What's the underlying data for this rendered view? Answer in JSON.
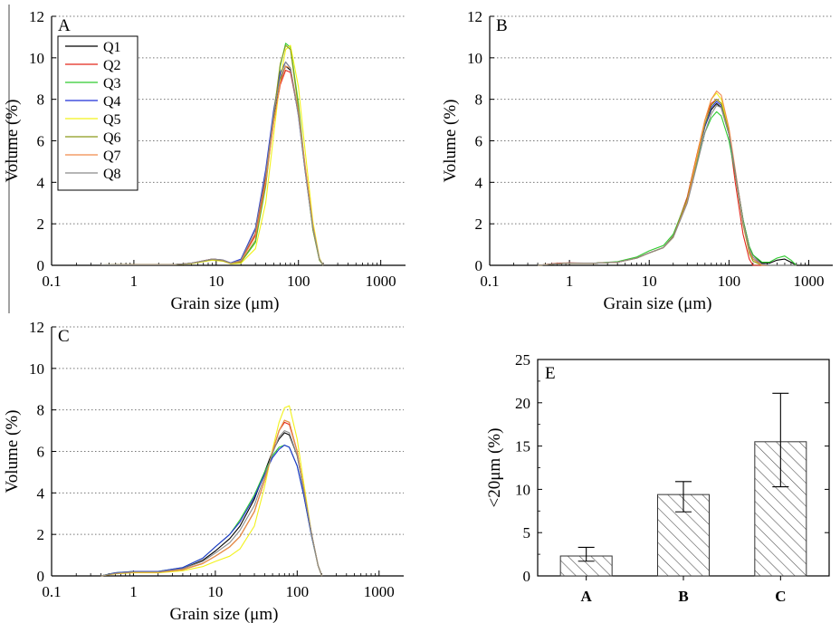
{
  "colors": {
    "Q1": "#000000",
    "Q2": "#e3261b",
    "Q3": "#2ecb2e",
    "Q4": "#1f2fd6",
    "Q5": "#f2f21a",
    "Q6": "#8a9a1a",
    "Q7": "#f08a4b",
    "Q8": "#8a8a8a",
    "bar_fill": "#ffffff",
    "bar_hatch": "#555555",
    "grid": "#777777"
  },
  "chart_data": [
    {
      "panel": "A",
      "type": "line",
      "label": "A",
      "xlabel": "Grain size (μm)",
      "ylabel": "Volume (%)",
      "xscale": "log",
      "xlim": [
        0.1,
        2000
      ],
      "ylim": [
        0,
        12
      ],
      "xticks": [
        "0.1",
        "1",
        "10",
        "100",
        "1000"
      ],
      "yticks": [
        "0",
        "2",
        "4",
        "6",
        "8",
        "10",
        "12"
      ],
      "grid": "horizontal dotted",
      "legend": {
        "position": "top-left",
        "entries": [
          "Q1",
          "Q2",
          "Q3",
          "Q4",
          "Q5",
          "Q6",
          "Q7",
          "Q8"
        ]
      },
      "x": [
        0.4,
        1,
        3,
        5,
        7,
        9,
        12,
        15,
        20,
        30,
        40,
        50,
        60,
        70,
        80,
        100,
        120,
        150,
        180,
        200
      ],
      "series": [
        {
          "name": "Q1",
          "values": [
            0.02,
            0.03,
            0.03,
            0.1,
            0.22,
            0.3,
            0.25,
            0.1,
            0.2,
            1.5,
            4.2,
            7.0,
            8.9,
            9.6,
            9.4,
            7.3,
            4.8,
            1.9,
            0.3,
            0
          ]
        },
        {
          "name": "Q2",
          "values": [
            0.02,
            0.03,
            0.03,
            0.1,
            0.22,
            0.3,
            0.25,
            0.1,
            0.2,
            1.5,
            4.1,
            6.9,
            8.7,
            9.4,
            9.3,
            7.3,
            4.8,
            1.9,
            0.3,
            0
          ]
        },
        {
          "name": "Q3",
          "values": [
            0.02,
            0.03,
            0.03,
            0.1,
            0.2,
            0.28,
            0.22,
            0.09,
            0.15,
            1.1,
            3.8,
            7.2,
            9.6,
            10.7,
            10.5,
            7.8,
            4.8,
            1.7,
            0.25,
            0
          ]
        },
        {
          "name": "Q4",
          "values": [
            0.02,
            0.03,
            0.03,
            0.1,
            0.22,
            0.3,
            0.26,
            0.12,
            0.3,
            1.8,
            4.6,
            7.5,
            9.3,
            9.8,
            9.5,
            7.2,
            4.6,
            1.8,
            0.3,
            0
          ]
        },
        {
          "name": "Q5",
          "values": [
            0.02,
            0.03,
            0.03,
            0.08,
            0.18,
            0.25,
            0.2,
            0.07,
            0.1,
            0.8,
            3.0,
            6.3,
            9.0,
            10.4,
            10.6,
            8.6,
            5.6,
            2.1,
            0.35,
            0
          ]
        },
        {
          "name": "Q6",
          "values": [
            0.02,
            0.03,
            0.03,
            0.1,
            0.2,
            0.28,
            0.22,
            0.09,
            0.15,
            1.2,
            3.9,
            7.3,
            9.7,
            10.6,
            10.4,
            7.6,
            4.7,
            1.7,
            0.25,
            0
          ]
        },
        {
          "name": "Q7",
          "values": [
            0.02,
            0.03,
            0.03,
            0.1,
            0.22,
            0.3,
            0.25,
            0.1,
            0.2,
            1.4,
            4.0,
            6.9,
            8.8,
            9.6,
            9.5,
            7.4,
            4.9,
            1.9,
            0.3,
            0
          ]
        },
        {
          "name": "Q8",
          "values": [
            0.02,
            0.03,
            0.03,
            0.1,
            0.22,
            0.3,
            0.26,
            0.11,
            0.25,
            1.7,
            4.4,
            7.3,
            9.1,
            9.8,
            9.5,
            7.2,
            4.6,
            1.8,
            0.3,
            0
          ]
        }
      ]
    },
    {
      "panel": "B",
      "type": "line",
      "label": "B",
      "xlabel": "Grain size (μm)",
      "ylabel": "Volume (%)",
      "xscale": "log",
      "xlim": [
        0.1,
        2000
      ],
      "ylim": [
        0,
        12
      ],
      "xticks": [
        "0.1",
        "1",
        "10",
        "100",
        "1000"
      ],
      "yticks": [
        "0",
        "2",
        "4",
        "6",
        "8",
        "10",
        "12"
      ],
      "grid": "horizontal dotted",
      "x": [
        0.4,
        0.7,
        1,
        2,
        4,
        7,
        10,
        15,
        20,
        30,
        40,
        50,
        60,
        70,
        80,
        100,
        120,
        150,
        180,
        200,
        260,
        320,
        400,
        500,
        600,
        700
      ],
      "series": [
        {
          "name": "Q1",
          "values": [
            0,
            0.08,
            0.1,
            0.1,
            0.15,
            0.35,
            0.6,
            0.85,
            1.4,
            3.2,
            5.2,
            6.7,
            7.5,
            7.8,
            7.6,
            6.3,
            4.5,
            2.2,
            0.9,
            0.5,
            0.1,
            0.1,
            0.25,
            0.3,
            0.15,
            0
          ]
        },
        {
          "name": "Q2",
          "values": [
            0,
            0.1,
            0.12,
            0.1,
            0.15,
            0.35,
            0.6,
            0.85,
            1.4,
            3.3,
            5.4,
            7.0,
            7.8,
            8.0,
            7.8,
            6.3,
            4.0,
            1.5,
            0.3,
            0,
            0,
            0,
            0,
            0,
            0,
            0
          ]
        },
        {
          "name": "Q3",
          "values": [
            0,
            0.08,
            0.1,
            0.1,
            0.18,
            0.4,
            0.7,
            0.95,
            1.5,
            3.2,
            5.0,
            6.4,
            7.1,
            7.4,
            7.2,
            6.0,
            4.4,
            2.2,
            0.9,
            0.5,
            0.15,
            0.15,
            0.35,
            0.45,
            0.25,
            0
          ]
        },
        {
          "name": "Q4",
          "values": [
            0,
            0.08,
            0.1,
            0.1,
            0.15,
            0.35,
            0.6,
            0.85,
            1.4,
            3.2,
            5.2,
            6.7,
            7.6,
            7.9,
            7.7,
            6.3,
            4.4,
            2.0,
            0.7,
            0.3,
            0.05,
            0,
            0,
            0,
            0,
            0
          ]
        },
        {
          "name": "Q5",
          "values": [
            0,
            0.08,
            0.1,
            0.1,
            0.15,
            0.35,
            0.6,
            0.85,
            1.35,
            3.2,
            5.3,
            7.0,
            8.0,
            8.3,
            8.0,
            6.5,
            4.5,
            2.0,
            0.6,
            0.2,
            0,
            0,
            0,
            0,
            0,
            0
          ]
        },
        {
          "name": "Q6",
          "values": [
            0,
            0.08,
            0.1,
            0.1,
            0.15,
            0.35,
            0.6,
            0.85,
            1.4,
            3.2,
            5.2,
            6.8,
            7.7,
            8.0,
            7.8,
            6.4,
            4.4,
            2.0,
            0.6,
            0.2,
            0,
            0,
            0,
            0,
            0,
            0
          ]
        },
        {
          "name": "Q7",
          "values": [
            0,
            0.08,
            0.1,
            0.1,
            0.15,
            0.35,
            0.6,
            0.85,
            1.35,
            3.1,
            5.2,
            7.0,
            8.0,
            8.4,
            8.2,
            6.6,
            4.6,
            2.1,
            0.7,
            0.3,
            0,
            0,
            0,
            0,
            0,
            0
          ]
        },
        {
          "name": "Q8",
          "values": [
            0,
            0.08,
            0.1,
            0.1,
            0.15,
            0.35,
            0.6,
            0.85,
            1.35,
            3.0,
            4.9,
            6.4,
            7.3,
            7.7,
            7.6,
            6.3,
            4.5,
            2.1,
            0.8,
            0.4,
            0.05,
            0,
            0,
            0,
            0,
            0
          ]
        }
      ]
    },
    {
      "panel": "C",
      "type": "line",
      "label": "C",
      "xlabel": "Grain size (μm)",
      "ylabel": "Volume (%)",
      "xscale": "log",
      "xlim": [
        0.1,
        2000
      ],
      "ylim": [
        0,
        12
      ],
      "xticks": [
        "0.1",
        "1",
        "10",
        "100",
        "1000"
      ],
      "yticks": [
        "0",
        "2",
        "4",
        "6",
        "8",
        "10",
        "12"
      ],
      "grid": "horizontal dotted",
      "x": [
        0.4,
        0.6,
        1,
        2,
        4,
        7,
        10,
        15,
        20,
        30,
        40,
        50,
        60,
        70,
        80,
        100,
        120,
        150,
        180,
        200
      ],
      "series": [
        {
          "name": "Q1",
          "values": [
            0,
            0.15,
            0.2,
            0.2,
            0.35,
            0.75,
            1.2,
            1.8,
            2.4,
            3.7,
            5.0,
            6.0,
            6.6,
            6.9,
            6.8,
            5.8,
            4.2,
            2.0,
            0.5,
            0
          ]
        },
        {
          "name": "Q2",
          "values": [
            0,
            0.12,
            0.18,
            0.18,
            0.3,
            0.6,
            0.95,
            1.4,
            1.9,
            3.1,
            4.6,
            6.0,
            7.0,
            7.4,
            7.3,
            6.0,
            4.2,
            2.0,
            0.5,
            0
          ]
        },
        {
          "name": "Q3",
          "values": [
            0,
            0.15,
            0.22,
            0.22,
            0.4,
            0.85,
            1.4,
            2.0,
            2.7,
            3.9,
            5.0,
            5.8,
            6.2,
            6.3,
            6.2,
            5.3,
            3.9,
            1.9,
            0.5,
            0
          ]
        },
        {
          "name": "Q4",
          "values": [
            0,
            0.15,
            0.22,
            0.22,
            0.4,
            0.85,
            1.4,
            2.0,
            2.6,
            3.8,
            4.9,
            5.7,
            6.1,
            6.3,
            6.2,
            5.3,
            3.9,
            1.9,
            0.5,
            0
          ]
        },
        {
          "name": "Q5",
          "values": [
            0,
            0.1,
            0.15,
            0.15,
            0.25,
            0.45,
            0.7,
            0.95,
            1.3,
            2.4,
            4.3,
            6.1,
            7.4,
            8.1,
            8.2,
            6.6,
            4.5,
            2.0,
            0.5,
            0
          ]
        },
        {
          "name": "Q6",
          "values": [
            0,
            0.12,
            0.18,
            0.18,
            0.3,
            0.6,
            0.95,
            1.4,
            1.9,
            3.1,
            4.6,
            6.0,
            7.0,
            7.5,
            7.4,
            6.0,
            4.2,
            2.0,
            0.5,
            0
          ]
        },
        {
          "name": "Q7",
          "values": [
            0,
            0.12,
            0.18,
            0.18,
            0.3,
            0.6,
            0.95,
            1.4,
            1.9,
            3.1,
            4.6,
            6.0,
            7.0,
            7.5,
            7.4,
            6.0,
            4.2,
            2.0,
            0.5,
            0
          ]
        },
        {
          "name": "Q8",
          "values": [
            0,
            0.13,
            0.2,
            0.2,
            0.35,
            0.7,
            1.1,
            1.6,
            2.2,
            3.4,
            4.8,
            5.9,
            6.7,
            7.0,
            6.9,
            5.8,
            4.1,
            2.0,
            0.5,
            0
          ]
        }
      ]
    },
    {
      "panel": "E",
      "type": "bar",
      "label": "E",
      "categories": [
        "A",
        "B",
        "C"
      ],
      "values": [
        2.3,
        9.4,
        15.5
      ],
      "error_low": [
        1.7,
        7.4,
        10.3
      ],
      "error_high": [
        3.3,
        10.9,
        21.1
      ],
      "ylabel": "<20μm (%)",
      "xlabel": "",
      "ylim": [
        0,
        25
      ],
      "yticks": [
        "0",
        "5",
        "10",
        "15",
        "20",
        "25"
      ],
      "fill": "hatched"
    }
  ]
}
